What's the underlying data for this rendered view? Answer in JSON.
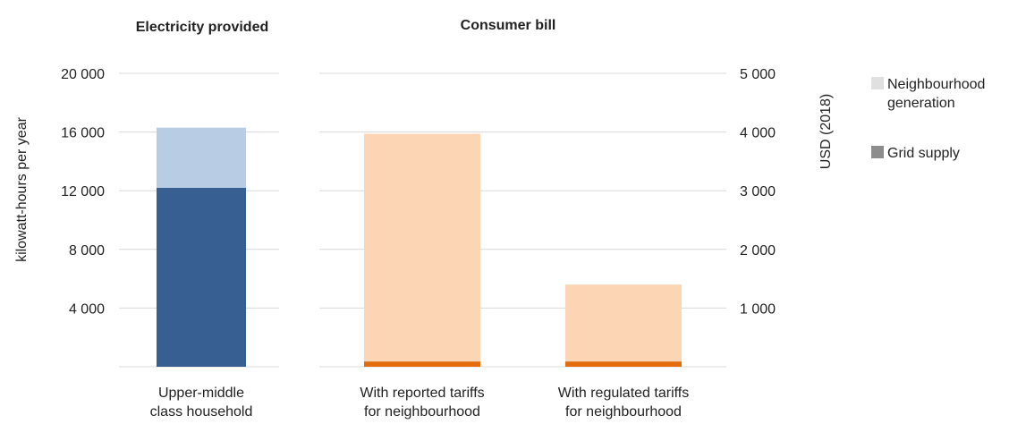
{
  "chart_data": [
    {
      "type": "bar",
      "stacked": true,
      "title": "Electricity provided",
      "ylabel": "kilowatt-hours per year",
      "ylim": [
        0,
        20000
      ],
      "yticks": [
        "20 000",
        "16 000",
        "12 000",
        "8 000",
        "4 000"
      ],
      "ytick_values": [
        20000,
        16000,
        12000,
        8000,
        4000
      ],
      "categories": [
        [
          "Upper-middle",
          "class household"
        ]
      ],
      "series": [
        {
          "name": "Grid supply",
          "values": [
            12200
          ],
          "color": "#375f91"
        },
        {
          "name": "Neighbourhood generation",
          "values": [
            4100
          ],
          "color": "#b8cce4"
        }
      ],
      "grid": true
    },
    {
      "type": "bar",
      "stacked": true,
      "title": "Consumer bill",
      "ylabel": "USD (2018)",
      "ylim": [
        0,
        5000
      ],
      "yticks": [
        "5 000",
        "4 000",
        "3 000",
        "2 000",
        "1 000"
      ],
      "ytick_values": [
        5000,
        4000,
        3000,
        2000,
        1000
      ],
      "categories": [
        [
          "With reported tariffs",
          "for neighbourhood"
        ],
        [
          "With regulated tariffs",
          "for neighbourhood"
        ]
      ],
      "series": [
        {
          "name": "Grid supply",
          "values": [
            90,
            90
          ],
          "color": "#e46c0a"
        },
        {
          "name": "Neighbourhood generation",
          "values": [
            3880,
            1310
          ],
          "color": "#fcd5b5"
        }
      ],
      "grid": true
    }
  ],
  "legend": {
    "placement": "right",
    "items": [
      {
        "lines": [
          "Neighbourhood",
          "generation"
        ],
        "color": "#e0e0e0"
      },
      {
        "lines": [
          "Grid supply"
        ],
        "color": "#8c8c8c"
      }
    ]
  }
}
